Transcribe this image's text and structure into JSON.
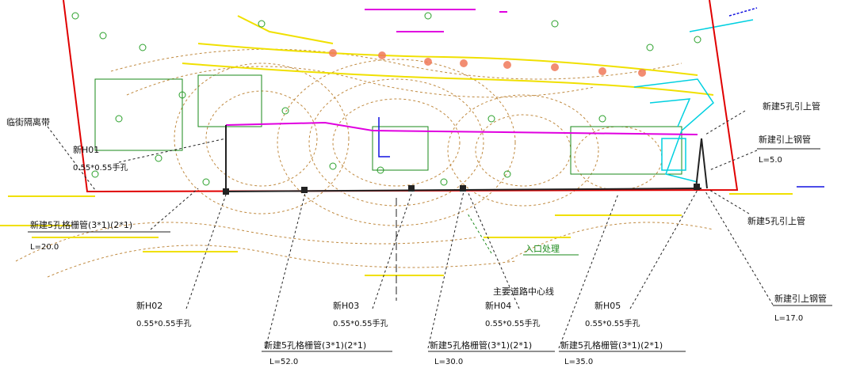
{
  "colors": {
    "boundary": "#e00000",
    "pipe_route": "#e000e0",
    "contours": "#c08a40",
    "vegetation": "#2aa02a",
    "road": "#f0e000",
    "cyan_feature": "#00d0e0",
    "leader": "#222222",
    "north_arrow": "#1010e0"
  },
  "labels": {
    "top_left_region": "临街隔离带",
    "hand_hole_1_name": "新H01",
    "hand_hole_1_size": "0.55*0.55手孔",
    "pipe_left": "新建5孔格栅管(3*1)(2*1)",
    "pipe_left_length": "L=20.0",
    "hand_hole_2_name": "新H02",
    "hand_hole_2_size": "0.55*0.55手孔",
    "pipe_mid_left": "新建5孔格栅管(3*1)(2*1)",
    "pipe_mid_left_length": "L=52.0",
    "hand_hole_3_name": "新H03",
    "hand_hole_3_size": "0.55*0.55手孔",
    "hand_hole_4_name": "新H04",
    "hand_hole_4_size": "0.55*0.55手孔",
    "pipe_mid_right": "新建5孔格栅管(3*1)(2*1)",
    "pipe_mid_right_length": "L=30.0",
    "hand_hole_5_name": "新H05",
    "hand_hole_5_size": "0.55*0.55手孔",
    "pipe_right": "新建5孔格栅管(3*1)(2*1)",
    "pipe_right_length": "L=35.0",
    "entrance": "入口处理",
    "road_label": "主要道路中心线",
    "right_upper_a": "新建5孔引上管",
    "right_upper_b": "新建引上钢管",
    "right_upper_b_length": "L=5.0",
    "right_lower_a": "新建5孔引上管",
    "right_lower_b": "新建引上钢管",
    "right_lower_b_length": "L=17.0"
  }
}
